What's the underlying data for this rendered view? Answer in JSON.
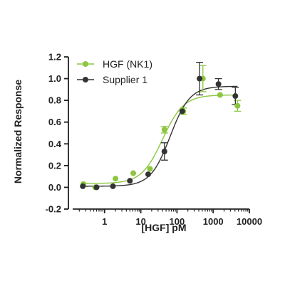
{
  "chart_data": {
    "type": "scatter",
    "xlabel": "[HGF] pM",
    "ylabel": "Normalized Response",
    "xscale": "log",
    "xlim": [
      0.1,
      10000
    ],
    "ylim": [
      -0.2,
      1.2
    ],
    "grid": false,
    "legend_position": "top-left",
    "x_ticks": [
      {
        "value": 1,
        "label": "1"
      },
      {
        "value": 10,
        "label": "10"
      },
      {
        "value": 100,
        "label": "100"
      },
      {
        "value": 1000,
        "label": "1000"
      },
      {
        "value": 10000,
        "label": "10000"
      }
    ],
    "y_ticks": [
      {
        "value": -0.2,
        "label": "-0.2"
      },
      {
        "value": 0.0,
        "label": "0.0"
      },
      {
        "value": 0.2,
        "label": "0.2"
      },
      {
        "value": 0.4,
        "label": "0.4"
      },
      {
        "value": 0.6,
        "label": "0.6"
      },
      {
        "value": 0.8,
        "label": "0.8"
      },
      {
        "value": 1.0,
        "label": "1.0"
      },
      {
        "value": 1.2,
        "label": "1.2"
      }
    ],
    "series": [
      {
        "name": "HGF (NK1)",
        "color": "#8cc63f",
        "points": [
          {
            "x": 0.26,
            "y": 0.03,
            "err": 0.0
          },
          {
            "x": 0.55,
            "y": 0.0,
            "err": 0.0
          },
          {
            "x": 2.0,
            "y": 0.08,
            "err": 0.0
          },
          {
            "x": 6.2,
            "y": 0.13,
            "err": 0.0
          },
          {
            "x": 18,
            "y": 0.17,
            "err": 0.0
          },
          {
            "x": 45,
            "y": 0.53,
            "err": 0.03
          },
          {
            "x": 150,
            "y": 0.7,
            "err": 0.03
          },
          {
            "x": 520,
            "y": 1.0,
            "err": 0.12
          },
          {
            "x": 1550,
            "y": 0.85,
            "err": 0.0
          },
          {
            "x": 4700,
            "y": 0.75,
            "err": 0.05
          }
        ],
        "fit": {
          "bottom": 0.035,
          "top": 0.85,
          "ec50": 40,
          "hill": 1.5
        }
      },
      {
        "name": "Supplier 1",
        "color": "#333333",
        "points": [
          {
            "x": 0.25,
            "y": 0.01,
            "err": 0.0
          },
          {
            "x": 0.6,
            "y": 0.0,
            "err": 0.0
          },
          {
            "x": 1.7,
            "y": 0.01,
            "err": 0.0
          },
          {
            "x": 5.0,
            "y": 0.06,
            "err": 0.0
          },
          {
            "x": 16,
            "y": 0.12,
            "err": 0.0
          },
          {
            "x": 45,
            "y": 0.33,
            "err": 0.08
          },
          {
            "x": 140,
            "y": 0.7,
            "err": 0.0
          },
          {
            "x": 420,
            "y": 1.0,
            "err": 0.15
          },
          {
            "x": 1400,
            "y": 0.95,
            "err": 0.05
          },
          {
            "x": 4100,
            "y": 0.84,
            "err": 0.08
          }
        ],
        "fit": {
          "bottom": 0.01,
          "top": 0.93,
          "ec50": 65,
          "hill": 1.6
        }
      }
    ]
  }
}
